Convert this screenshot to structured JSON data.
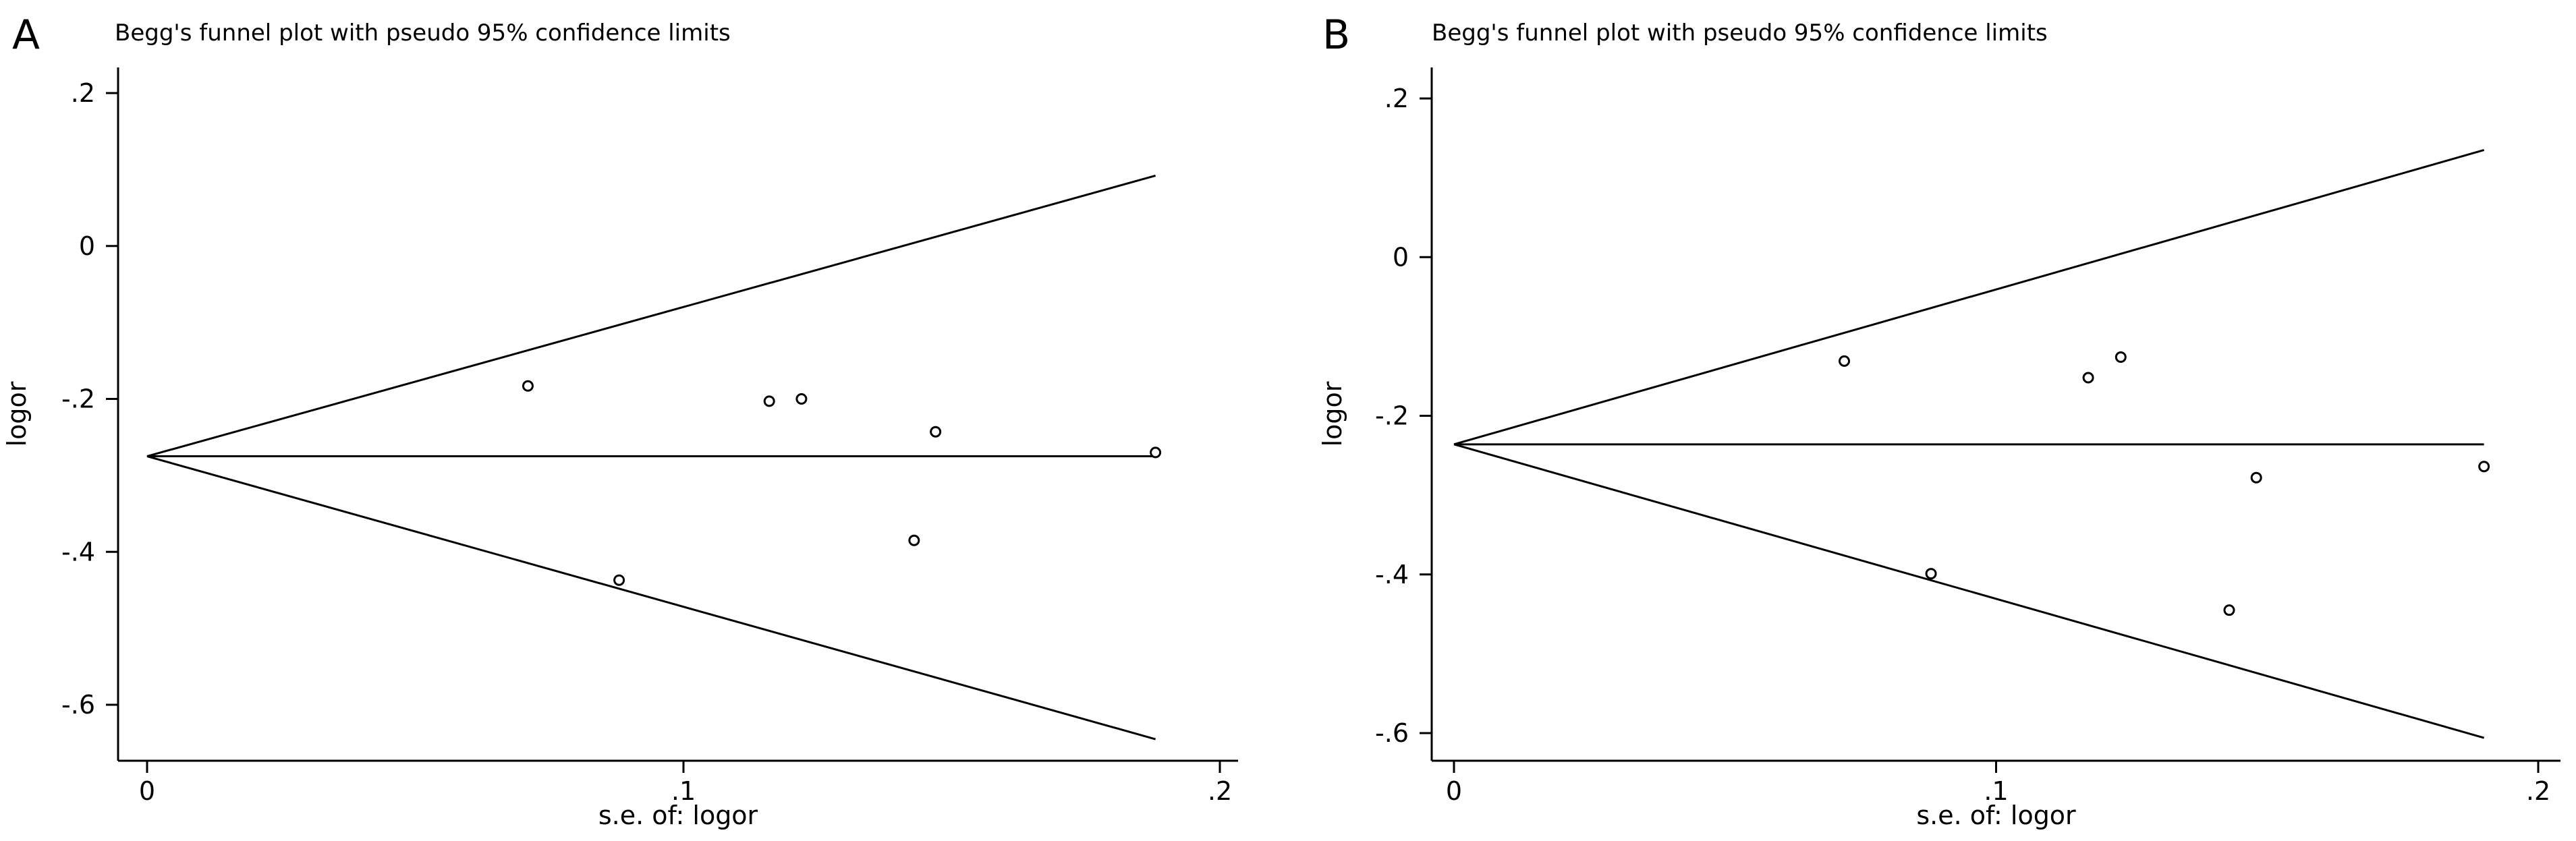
{
  "chart_data": [
    {
      "type": "scatter",
      "panel": "A",
      "title": "Begg's funnel plot with pseudo 95% confidence limits",
      "xlabel": "s.e. of: logor",
      "ylabel": "logor",
      "xlim": [
        0,
        0.2
      ],
      "ylim": [
        -0.6,
        0.2
      ],
      "xticks": [
        0,
        0.1,
        0.2
      ],
      "xtick_labels": [
        "0",
        ".1",
        ".2"
      ],
      "yticks": [
        0.2,
        0,
        -0.2,
        -0.4,
        -0.6
      ],
      "ytick_labels": [
        ".2",
        "0",
        "-.2",
        "-.4",
        "-.6"
      ],
      "pooled_estimate": -0.275,
      "pseudo_ci_lines": {
        "apex": [
          0,
          -0.275
        ],
        "upper_end": [
          0.188,
          0.092
        ],
        "lower_end": [
          0.188,
          -0.645
        ],
        "center_end": [
          0.188,
          -0.275
        ]
      },
      "points": [
        {
          "x": 0.071,
          "y": -0.183
        },
        {
          "x": 0.088,
          "y": -0.437
        },
        {
          "x": 0.116,
          "y": -0.203
        },
        {
          "x": 0.122,
          "y": -0.2
        },
        {
          "x": 0.143,
          "y": -0.385
        },
        {
          "x": 0.147,
          "y": -0.243
        },
        {
          "x": 0.188,
          "y": -0.27
        }
      ],
      "grid": false,
      "legend": "none"
    },
    {
      "type": "scatter",
      "panel": "B",
      "title": "Begg's funnel plot with pseudo 95% confidence limits",
      "xlabel": "s.e. of: logor",
      "ylabel": "logor",
      "xlim": [
        0,
        0.2
      ],
      "ylim": [
        -0.6,
        0.2
      ],
      "xticks": [
        0,
        0.1,
        0.2
      ],
      "xtick_labels": [
        "0",
        ".1",
        ".2"
      ],
      "yticks": [
        0.2,
        0,
        -0.2,
        -0.4,
        -0.6
      ],
      "ytick_labels": [
        ".2",
        "0",
        "-.2",
        "-.4",
        "-.6"
      ],
      "pooled_estimate": -0.236,
      "pseudo_ci_lines": {
        "apex": [
          0,
          -0.236
        ],
        "upper_end": [
          0.19,
          0.135
        ],
        "lower_end": [
          0.19,
          -0.606
        ],
        "center_end": [
          0.19,
          -0.236
        ]
      },
      "points": [
        {
          "x": 0.072,
          "y": -0.131
        },
        {
          "x": 0.088,
          "y": -0.399
        },
        {
          "x": 0.117,
          "y": -0.152
        },
        {
          "x": 0.123,
          "y": -0.126
        },
        {
          "x": 0.143,
          "y": -0.445
        },
        {
          "x": 0.148,
          "y": -0.278
        },
        {
          "x": 0.19,
          "y": -0.264
        }
      ],
      "grid": false,
      "legend": "none"
    }
  ]
}
